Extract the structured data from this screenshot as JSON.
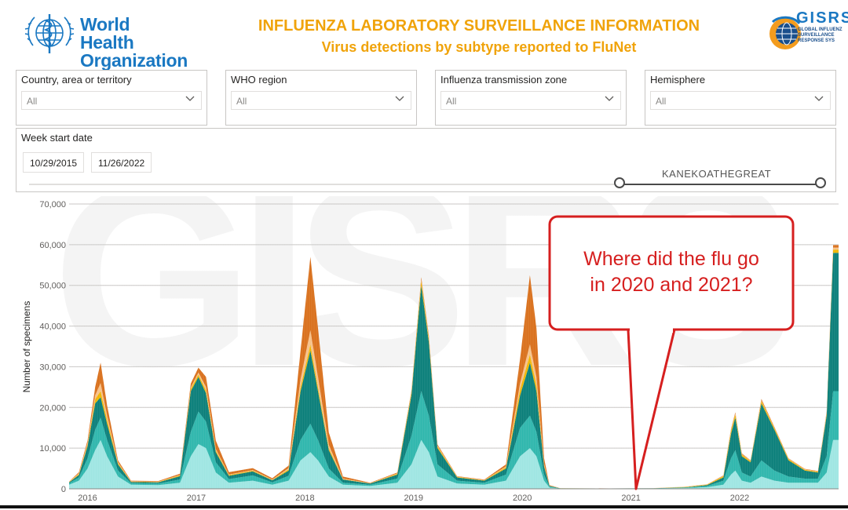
{
  "header": {
    "org_name_line1": "World Health",
    "org_name_line2": "Organization",
    "title": "INFLUENZA LABORATORY SURVEILLANCE INFORMATION",
    "subtitle": "Virus detections by subtype reported to FluNet",
    "gisrs_word": "GISRS",
    "gisrs_sub1": "GLOBAL INFLUENZ",
    "gisrs_sub2": "SURVEILLANCE",
    "gisrs_sub3": "RESPONSE SYS"
  },
  "filters": [
    {
      "label": "Country, area or territory",
      "value": "All"
    },
    {
      "label": "WHO region",
      "value": "All"
    },
    {
      "label": "Influenza transmission zone",
      "value": "All"
    },
    {
      "label": "Hemisphere",
      "value": "All"
    }
  ],
  "date_filter": {
    "label": "Week start date",
    "start": "10/29/2015",
    "end": "11/26/2022",
    "watermark": "KANEKOATHEGREAT"
  },
  "callout": {
    "line1": "Where did the flu go",
    "line2": "in 2020 and 2021?"
  },
  "colors": {
    "teal_dark": "#0b7f7a",
    "teal_mid": "#2fb7ad",
    "teal_light": "#9fe6e2",
    "orange": "#d9701d",
    "peach": "#f7c28a",
    "yellow": "#f2b600",
    "callout_border": "#d61f1f"
  },
  "chart_data": {
    "type": "area",
    "ylabel": "Number of specimens",
    "ylim": [
      0,
      70000
    ],
    "y_ticks": [
      "0",
      "10,000",
      "20,000",
      "30,000",
      "40,000",
      "50,000",
      "60,000",
      "70,000"
    ],
    "x_ticks": [
      "2016",
      "2017",
      "2018",
      "2019",
      "2020",
      "2021",
      "2022"
    ],
    "xlim": [
      2015.83,
      2022.91
    ],
    "grid": true,
    "stacked": true,
    "series_order": [
      "teal_light",
      "teal_mid",
      "teal_dark",
      "yellow",
      "peach",
      "orange"
    ],
    "points": [
      {
        "x": 2015.83,
        "s": [
          1000,
          400,
          200,
          100,
          50,
          50
        ]
      },
      {
        "x": 2015.92,
        "s": [
          2000,
          800,
          600,
          200,
          200,
          300
        ]
      },
      {
        "x": 2016.0,
        "s": [
          5000,
          2500,
          3000,
          400,
          400,
          600
        ]
      },
      {
        "x": 2016.07,
        "s": [
          9500,
          5000,
          6500,
          1000,
          1000,
          2000
        ]
      },
      {
        "x": 2016.12,
        "s": [
          12000,
          5500,
          5000,
          1500,
          2000,
          5000
        ]
      },
      {
        "x": 2016.18,
        "s": [
          8000,
          4000,
          4000,
          1000,
          1000,
          2500
        ]
      },
      {
        "x": 2016.28,
        "s": [
          3000,
          1500,
          1500,
          300,
          200,
          500
        ]
      },
      {
        "x": 2016.4,
        "s": [
          1000,
          400,
          300,
          100,
          50,
          150
        ]
      },
      {
        "x": 2016.65,
        "s": [
          900,
          400,
          300,
          100,
          50,
          150
        ]
      },
      {
        "x": 2016.85,
        "s": [
          1500,
          800,
          800,
          200,
          100,
          300
        ]
      },
      {
        "x": 2016.95,
        "s": [
          8000,
          6000,
          10000,
          600,
          300,
          1000
        ]
      },
      {
        "x": 2017.02,
        "s": [
          11000,
          8000,
          8500,
          600,
          500,
          1200
        ]
      },
      {
        "x": 2017.09,
        "s": [
          10000,
          6500,
          7000,
          700,
          800,
          2500
        ]
      },
      {
        "x": 2017.18,
        "s": [
          4000,
          2500,
          2500,
          400,
          400,
          2000
        ]
      },
      {
        "x": 2017.3,
        "s": [
          1500,
          900,
          800,
          200,
          100,
          600
        ]
      },
      {
        "x": 2017.52,
        "s": [
          2000,
          1300,
          1000,
          200,
          100,
          500
        ]
      },
      {
        "x": 2017.7,
        "s": [
          1000,
          600,
          500,
          100,
          100,
          300
        ]
      },
      {
        "x": 2017.85,
        "s": [
          2000,
          1200,
          1300,
          300,
          300,
          600
        ]
      },
      {
        "x": 2017.96,
        "s": [
          7000,
          5000,
          12000,
          1000,
          2000,
          7000
        ]
      },
      {
        "x": 2018.05,
        "s": [
          9000,
          7000,
          18000,
          1500,
          3500,
          18000
        ]
      },
      {
        "x": 2018.12,
        "s": [
          7000,
          5000,
          12000,
          1000,
          2500,
          12000
        ]
      },
      {
        "x": 2018.22,
        "s": [
          3000,
          2000,
          4500,
          500,
          800,
          3000
        ]
      },
      {
        "x": 2018.35,
        "s": [
          1000,
          500,
          800,
          100,
          100,
          500
        ]
      },
      {
        "x": 2018.6,
        "s": [
          700,
          300,
          300,
          50,
          50,
          100
        ]
      },
      {
        "x": 2018.85,
        "s": [
          1500,
          1000,
          1000,
          200,
          100,
          200
        ]
      },
      {
        "x": 2018.98,
        "s": [
          6000,
          7000,
          10000,
          600,
          200,
          300
        ]
      },
      {
        "x": 2019.07,
        "s": [
          12000,
          12000,
          26000,
          1200,
          300,
          500
        ]
      },
      {
        "x": 2019.14,
        "s": [
          9000,
          9000,
          18000,
          800,
          300,
          500
        ]
      },
      {
        "x": 2019.22,
        "s": [
          3000,
          3000,
          4000,
          400,
          200,
          300
        ]
      },
      {
        "x": 2019.4,
        "s": [
          1300,
          700,
          800,
          150,
          50,
          100
        ]
      },
      {
        "x": 2019.65,
        "s": [
          1000,
          500,
          500,
          100,
          50,
          100
        ]
      },
      {
        "x": 2019.85,
        "s": [
          2000,
          1500,
          1500,
          300,
          200,
          500
        ]
      },
      {
        "x": 2019.98,
        "s": [
          8000,
          7000,
          8000,
          1500,
          1500,
          6000
        ]
      },
      {
        "x": 2020.07,
        "s": [
          10000,
          8000,
          13000,
          2000,
          2500,
          17000
        ]
      },
      {
        "x": 2020.13,
        "s": [
          8000,
          6000,
          10000,
          1500,
          2000,
          12000
        ]
      },
      {
        "x": 2020.2,
        "s": [
          2000,
          1500,
          2000,
          300,
          300,
          1500
        ]
      },
      {
        "x": 2020.25,
        "s": [
          300,
          200,
          200,
          50,
          50,
          100
        ]
      },
      {
        "x": 2020.35,
        "s": [
          60,
          30,
          30,
          10,
          5,
          10
        ]
      },
      {
        "x": 2020.8,
        "s": [
          50,
          20,
          20,
          5,
          5,
          5
        ]
      },
      {
        "x": 2021.2,
        "s": [
          80,
          40,
          30,
          10,
          5,
          10
        ]
      },
      {
        "x": 2021.5,
        "s": [
          200,
          100,
          60,
          100,
          20,
          20
        ]
      },
      {
        "x": 2021.7,
        "s": [
          400,
          300,
          200,
          150,
          30,
          30
        ]
      },
      {
        "x": 2021.85,
        "s": [
          1000,
          1000,
          800,
          300,
          100,
          100
        ]
      },
      {
        "x": 2021.92,
        "s": [
          3500,
          4000,
          6000,
          700,
          200,
          300
        ]
      },
      {
        "x": 2021.96,
        "s": [
          4500,
          5000,
          8000,
          800,
          200,
          300
        ]
      },
      {
        "x": 2022.02,
        "s": [
          2000,
          2000,
          4000,
          400,
          100,
          200
        ]
      },
      {
        "x": 2022.1,
        "s": [
          1500,
          1500,
          3500,
          300,
          100,
          100
        ]
      },
      {
        "x": 2022.2,
        "s": [
          3000,
          4000,
          14000,
          600,
          200,
          300
        ]
      },
      {
        "x": 2022.32,
        "s": [
          2000,
          2500,
          10000,
          400,
          100,
          200
        ]
      },
      {
        "x": 2022.45,
        "s": [
          1500,
          1500,
          4000,
          300,
          100,
          100
        ]
      },
      {
        "x": 2022.6,
        "s": [
          1500,
          1000,
          2000,
          200,
          100,
          100
        ]
      },
      {
        "x": 2022.72,
        "s": [
          1500,
          1000,
          1500,
          200,
          100,
          100
        ]
      },
      {
        "x": 2022.8,
        "s": [
          4000,
          4000,
          10000,
          400,
          300,
          300
        ]
      },
      {
        "x": 2022.86,
        "s": [
          12000,
          12000,
          34000,
          800,
          500,
          600
        ]
      },
      {
        "x": 2022.91,
        "s": [
          12000,
          12000,
          34000,
          800,
          500,
          600
        ]
      }
    ]
  }
}
